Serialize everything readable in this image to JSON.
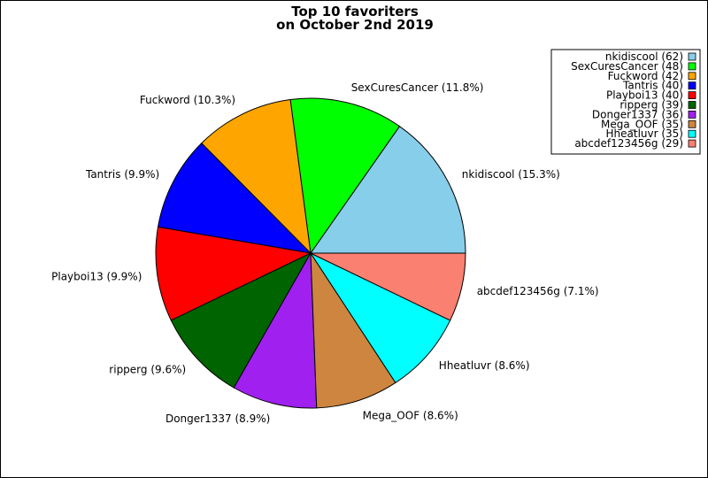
{
  "chart_data": {
    "type": "pie",
    "title": "Top 10 favoriters",
    "subtitle": "on October 2nd 2019",
    "legend_position": "top-right",
    "slices": [
      {
        "name": "nkidiscool",
        "value": 62,
        "percent_label": "nkidiscool (15.3%)",
        "legend_label": "nkidiscool (62)",
        "color": "#87CEEB"
      },
      {
        "name": "SexCuresCancer",
        "value": 48,
        "percent_label": "SexCuresCancer (11.8%)",
        "legend_label": "SexCuresCancer (48)",
        "color": "#00FF00"
      },
      {
        "name": "Fuckword",
        "value": 42,
        "percent_label": "Fuckword (10.3%)",
        "legend_label": "Fuckword (42)",
        "color": "#FFA500"
      },
      {
        "name": "Tantris",
        "value": 40,
        "percent_label": "Tantris (9.9%)",
        "legend_label": "Tantris (40)",
        "color": "#0000FF"
      },
      {
        "name": "Playboi13",
        "value": 40,
        "percent_label": "Playboi13 (9.9%)",
        "legend_label": "Playboi13 (40)",
        "color": "#FF0000"
      },
      {
        "name": "ripperg",
        "value": 39,
        "percent_label": "ripperg (9.6%)",
        "legend_label": "ripperg (39)",
        "color": "#006400"
      },
      {
        "name": "Donger1337",
        "value": 36,
        "percent_label": "Donger1337 (8.9%)",
        "legend_label": "Donger1337 (36)",
        "color": "#A020F0"
      },
      {
        "name": "Mega_OOF",
        "value": 35,
        "percent_label": "Mega_OOF (8.6%)",
        "legend_label": "Mega_OOF (35)",
        "color": "#CD853F"
      },
      {
        "name": "Hheatluvr",
        "value": 35,
        "percent_label": "Hheatluvr (8.6%)",
        "legend_label": "Hheatluvr (35)",
        "color": "#00FFFF"
      },
      {
        "name": "abcdef123456g",
        "value": 29,
        "percent_label": "abcdef123456g (7.1%)",
        "legend_label": "abcdef123456g (29)",
        "color": "#FA8072"
      }
    ]
  }
}
